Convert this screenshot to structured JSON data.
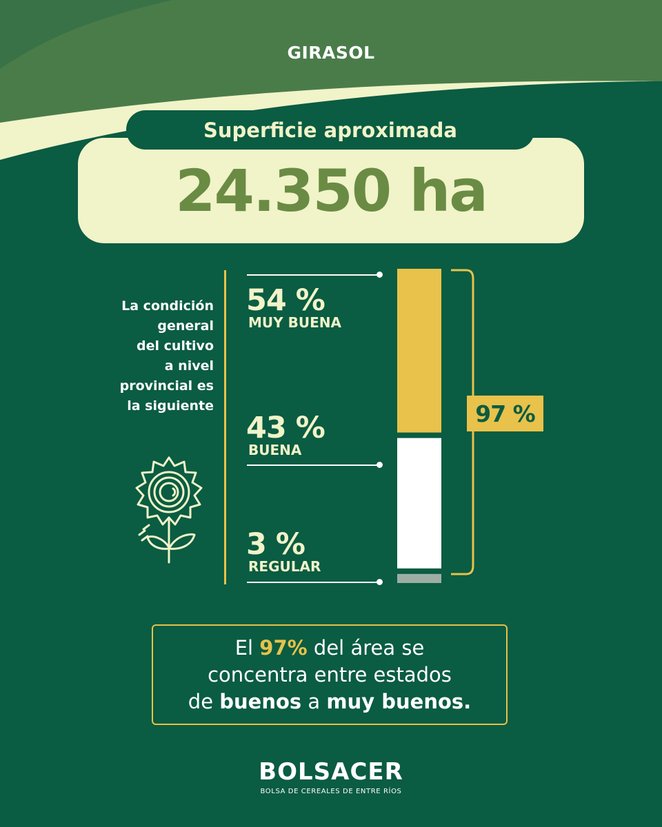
{
  "header": {
    "title": "GIRASOL"
  },
  "surface": {
    "label": "Superficie aproximada",
    "value": "24.350 ha"
  },
  "intro": {
    "text_lines": [
      "La condición",
      "general",
      "del cultivo",
      "a nivel",
      "provincial es",
      "la siguiente"
    ]
  },
  "stats": [
    {
      "value": "54 %",
      "label": "MUY BUENA"
    },
    {
      "value": "43 %",
      "label": "BUENA"
    },
    {
      "value": "3 %",
      "label": "REGULAR"
    }
  ],
  "total": {
    "value": "97 %"
  },
  "summary": {
    "line1_a": "El ",
    "line1_b": "97%",
    "line1_c": " del área se",
    "line2": "concentra entre estados",
    "line3_a": "de ",
    "line3_b": "buenos",
    "line3_c": " a ",
    "line3_d": "muy buenos."
  },
  "brand": {
    "name": "BOLSACER",
    "subtitle": "BOLSA DE CEREALES DE ENTRE RÍOS"
  },
  "colors": {
    "background": "#0a5c42",
    "cream": "#f1f3c9",
    "accent_yellow": "#e8c24a",
    "olive_text": "#6a8b44",
    "bar_white": "#ffffff",
    "bar_gray": "#9eaea5"
  },
  "icons": {
    "sunflower": "sunflower-icon"
  },
  "chart_data": {
    "type": "bar",
    "stacked": true,
    "categories": [
      "MUY BUENA",
      "BUENA",
      "REGULAR"
    ],
    "values": [
      54,
      43,
      3
    ],
    "unit": "%",
    "ylim": [
      0,
      100
    ],
    "total_highlight": {
      "categories": [
        "MUY BUENA",
        "BUENA"
      ],
      "value": 97
    }
  }
}
